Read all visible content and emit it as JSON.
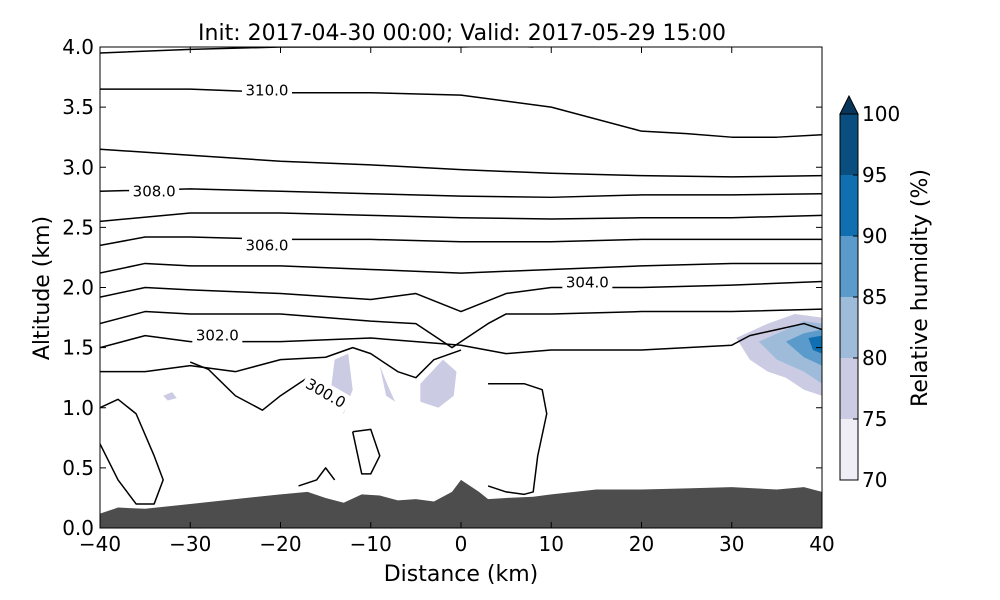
{
  "chart_data": {
    "type": "contour",
    "title": "Init: 2017-04-30 00:00; Valid: 2017-05-29 15:00",
    "xlabel": "Distance (km)",
    "ylabel": "Altitude (km)",
    "xlim": [
      -40,
      40
    ],
    "ylim": [
      0,
      4
    ],
    "xticks": [
      "−40",
      "−30",
      "−20",
      "−10",
      "0",
      "10",
      "20",
      "30",
      "40"
    ],
    "xtick_values": [
      -40,
      -30,
      -20,
      -10,
      0,
      10,
      20,
      30,
      40
    ],
    "yticks": [
      "0.0",
      "0.5",
      "1.0",
      "1.5",
      "2.0",
      "2.5",
      "3.0",
      "3.5",
      "4.0"
    ],
    "ytick_values": [
      0,
      0.5,
      1.0,
      1.5,
      2.0,
      2.5,
      3.0,
      3.5,
      4.0
    ],
    "colorbar": {
      "label": "Relative humidity (%)",
      "ticks": [
        "70",
        "75",
        "80",
        "85",
        "90",
        "95",
        "100"
      ],
      "levels": [
        70,
        75,
        80,
        85,
        90,
        95,
        100
      ],
      "colors": [
        "#efedf5",
        "#cbcbe3",
        "#9ebcda",
        "#5a9bcc",
        "#0f6fb0",
        "#0a4d7f"
      ],
      "extend_color": "#08365a"
    },
    "contour_labels": [
      {
        "text": "310.0",
        "x": -21.5,
        "y": 3.64,
        "rot": 0
      },
      {
        "text": "308.0",
        "x": -34,
        "y": 2.8,
        "rot": 0
      },
      {
        "text": "306.0",
        "x": -21.5,
        "y": 2.35,
        "rot": 0
      },
      {
        "text": "304.0",
        "x": 14,
        "y": 2.04,
        "rot": 0
      },
      {
        "text": "302.0",
        "x": -27,
        "y": 1.6,
        "rot": 0
      },
      {
        "text": "300.0",
        "x": -15,
        "y": 1.12,
        "rot": 30
      }
    ],
    "terrain": {
      "color": "#4d4d4d",
      "x": [
        -40,
        -38,
        -35,
        -30,
        -25,
        -20,
        -17,
        -15,
        -13,
        -11,
        -9,
        -7,
        -5,
        -3,
        -1,
        0,
        2,
        3,
        5,
        8,
        10,
        15,
        20,
        25,
        30,
        35,
        38,
        40
      ],
      "y": [
        0.12,
        0.17,
        0.16,
        0.2,
        0.24,
        0.28,
        0.3,
        0.25,
        0.21,
        0.28,
        0.27,
        0.23,
        0.24,
        0.22,
        0.3,
        0.4,
        0.3,
        0.24,
        0.25,
        0.26,
        0.28,
        0.32,
        0.32,
        0.33,
        0.34,
        0.32,
        0.34,
        0.3
      ]
    },
    "theta_lines": [
      {
        "x": [
          -40,
          -30,
          -20,
          -10,
          0,
          5,
          8
        ],
        "y": [
          3.95,
          3.98,
          4.0,
          4.0,
          4.0,
          4.01,
          4.0
        ]
      },
      {
        "x": [
          -40,
          -30,
          -20,
          -10,
          0,
          10,
          20,
          25,
          30,
          35,
          40
        ],
        "y": [
          3.65,
          3.65,
          3.62,
          3.62,
          3.6,
          3.5,
          3.3,
          3.28,
          3.25,
          3.25,
          3.27
        ]
      },
      {
        "x": [
          -40,
          -30,
          -20,
          -10,
          0,
          10,
          20,
          30,
          40
        ],
        "y": [
          3.15,
          3.1,
          3.05,
          3.02,
          2.98,
          2.95,
          2.93,
          2.92,
          2.93
        ]
      },
      {
        "x": [
          -40,
          -30,
          -20,
          -10,
          0,
          10,
          20,
          30,
          40
        ],
        "y": [
          2.8,
          2.82,
          2.8,
          2.78,
          2.76,
          2.75,
          2.77,
          2.77,
          2.78
        ]
      },
      {
        "x": [
          -40,
          -30,
          -20,
          -10,
          0,
          10,
          20,
          30,
          40
        ],
        "y": [
          2.55,
          2.62,
          2.62,
          2.6,
          2.58,
          2.57,
          2.58,
          2.58,
          2.6
        ]
      },
      {
        "x": [
          -40,
          -35,
          -30,
          -20,
          -10,
          0,
          10,
          20,
          30,
          40
        ],
        "y": [
          2.35,
          2.42,
          2.42,
          2.4,
          2.4,
          2.38,
          2.38,
          2.4,
          2.4,
          2.4
        ]
      },
      {
        "x": [
          -40,
          -35,
          -30,
          -20,
          -10,
          0,
          10,
          20,
          30,
          40
        ],
        "y": [
          2.12,
          2.2,
          2.18,
          2.18,
          2.15,
          2.12,
          2.15,
          2.18,
          2.2,
          2.2
        ]
      },
      {
        "x": [
          -40,
          -35,
          -30,
          -20,
          -10,
          -5,
          0,
          5,
          10,
          20,
          30,
          40
        ],
        "y": [
          1.92,
          2.0,
          1.98,
          1.95,
          1.9,
          1.95,
          1.8,
          1.95,
          2.0,
          2.0,
          2.02,
          2.05
        ]
      },
      {
        "x": [
          -40,
          -35,
          -30,
          -20,
          -10,
          -5,
          -1,
          3,
          5,
          10,
          20,
          30,
          40
        ],
        "y": [
          1.7,
          1.8,
          1.78,
          1.78,
          1.72,
          1.7,
          1.5,
          1.7,
          1.78,
          1.78,
          1.8,
          1.8,
          1.82
        ]
      },
      {
        "x": [
          -40,
          -35,
          -30,
          -20,
          -10,
          -5,
          0,
          5,
          10,
          20,
          25,
          30,
          32,
          35,
          38,
          40
        ],
        "y": [
          1.5,
          1.6,
          1.55,
          1.55,
          1.58,
          1.55,
          1.52,
          1.45,
          1.48,
          1.48,
          1.5,
          1.52,
          1.6,
          1.65,
          1.7,
          1.65
        ]
      },
      {
        "x": [
          -40,
          -35,
          -30,
          -25,
          -20,
          -15,
          -12,
          -10,
          -7,
          -5,
          -3,
          0
        ],
        "y": [
          1.3,
          1.3,
          1.35,
          1.3,
          1.4,
          1.42,
          1.5,
          1.45,
          1.3,
          1.25,
          1.4,
          1.48
        ]
      },
      {
        "x": [
          -30,
          -28,
          -25,
          -22,
          -20,
          -17,
          -15
        ],
        "y": [
          1.38,
          1.32,
          1.1,
          0.98,
          1.1,
          1.25,
          1.15
        ]
      },
      {
        "x": [
          -40,
          -38,
          -36,
          -34,
          -33,
          -34,
          -36,
          -38,
          -40
        ],
        "y": [
          1.0,
          1.07,
          0.95,
          0.6,
          0.4,
          0.2,
          0.2,
          0.4,
          0.7
        ]
      },
      {
        "x": [
          -12,
          -10,
          -9,
          -10,
          -11,
          -12
        ],
        "y": [
          0.8,
          0.82,
          0.6,
          0.45,
          0.45,
          0.8
        ]
      },
      {
        "x": [
          -18,
          -16,
          -15,
          -14
        ],
        "y": [
          0.35,
          0.4,
          0.5,
          0.4
        ]
      },
      {
        "x": [
          3,
          5,
          7,
          9,
          9.5,
          8.5,
          8,
          7,
          5,
          3
        ],
        "y": [
          1.2,
          1.2,
          1.2,
          1.15,
          0.95,
          0.6,
          0.3,
          0.28,
          0.3,
          0.35
        ]
      }
    ],
    "rh_blobs": [
      {
        "level": 75,
        "x": [
          30.5,
          34,
          37,
          40,
          40,
          38,
          36,
          34,
          32
        ],
        "y": [
          1.58,
          1.7,
          1.78,
          1.75,
          1.1,
          1.15,
          1.25,
          1.3,
          1.4
        ]
      },
      {
        "level": 80,
        "x": [
          33,
          36,
          38,
          40,
          40,
          38,
          35
        ],
        "y": [
          1.55,
          1.65,
          1.72,
          1.7,
          1.2,
          1.3,
          1.4
        ]
      },
      {
        "level": 85,
        "x": [
          36,
          38,
          40,
          40,
          38
        ],
        "y": [
          1.55,
          1.62,
          1.65,
          1.35,
          1.42
        ]
      },
      {
        "level": 90,
        "x": [
          38.5,
          40,
          40,
          39
        ],
        "y": [
          1.58,
          1.6,
          1.45,
          1.48
        ]
      },
      {
        "level": 75,
        "x": [
          -14,
          -12.5,
          -12,
          -13,
          -14.5
        ],
        "y": [
          1.4,
          1.45,
          1.15,
          0.95,
          1.1
        ]
      },
      {
        "level": 75,
        "x": [
          -9,
          -8.3,
          -7.3,
          -8.2
        ],
        "y": [
          1.35,
          1.1,
          1.05,
          1.2
        ]
      },
      {
        "level": 75,
        "x": [
          -4.5,
          -2,
          -0.5,
          -0.8,
          -2.5,
          -4.5
        ],
        "y": [
          1.2,
          1.4,
          1.3,
          1.1,
          1.0,
          1.05
        ]
      },
      {
        "level": 75,
        "x": [
          -33,
          -32,
          -31.5,
          -32.5
        ],
        "y": [
          1.1,
          1.13,
          1.08,
          1.06
        ]
      }
    ]
  }
}
